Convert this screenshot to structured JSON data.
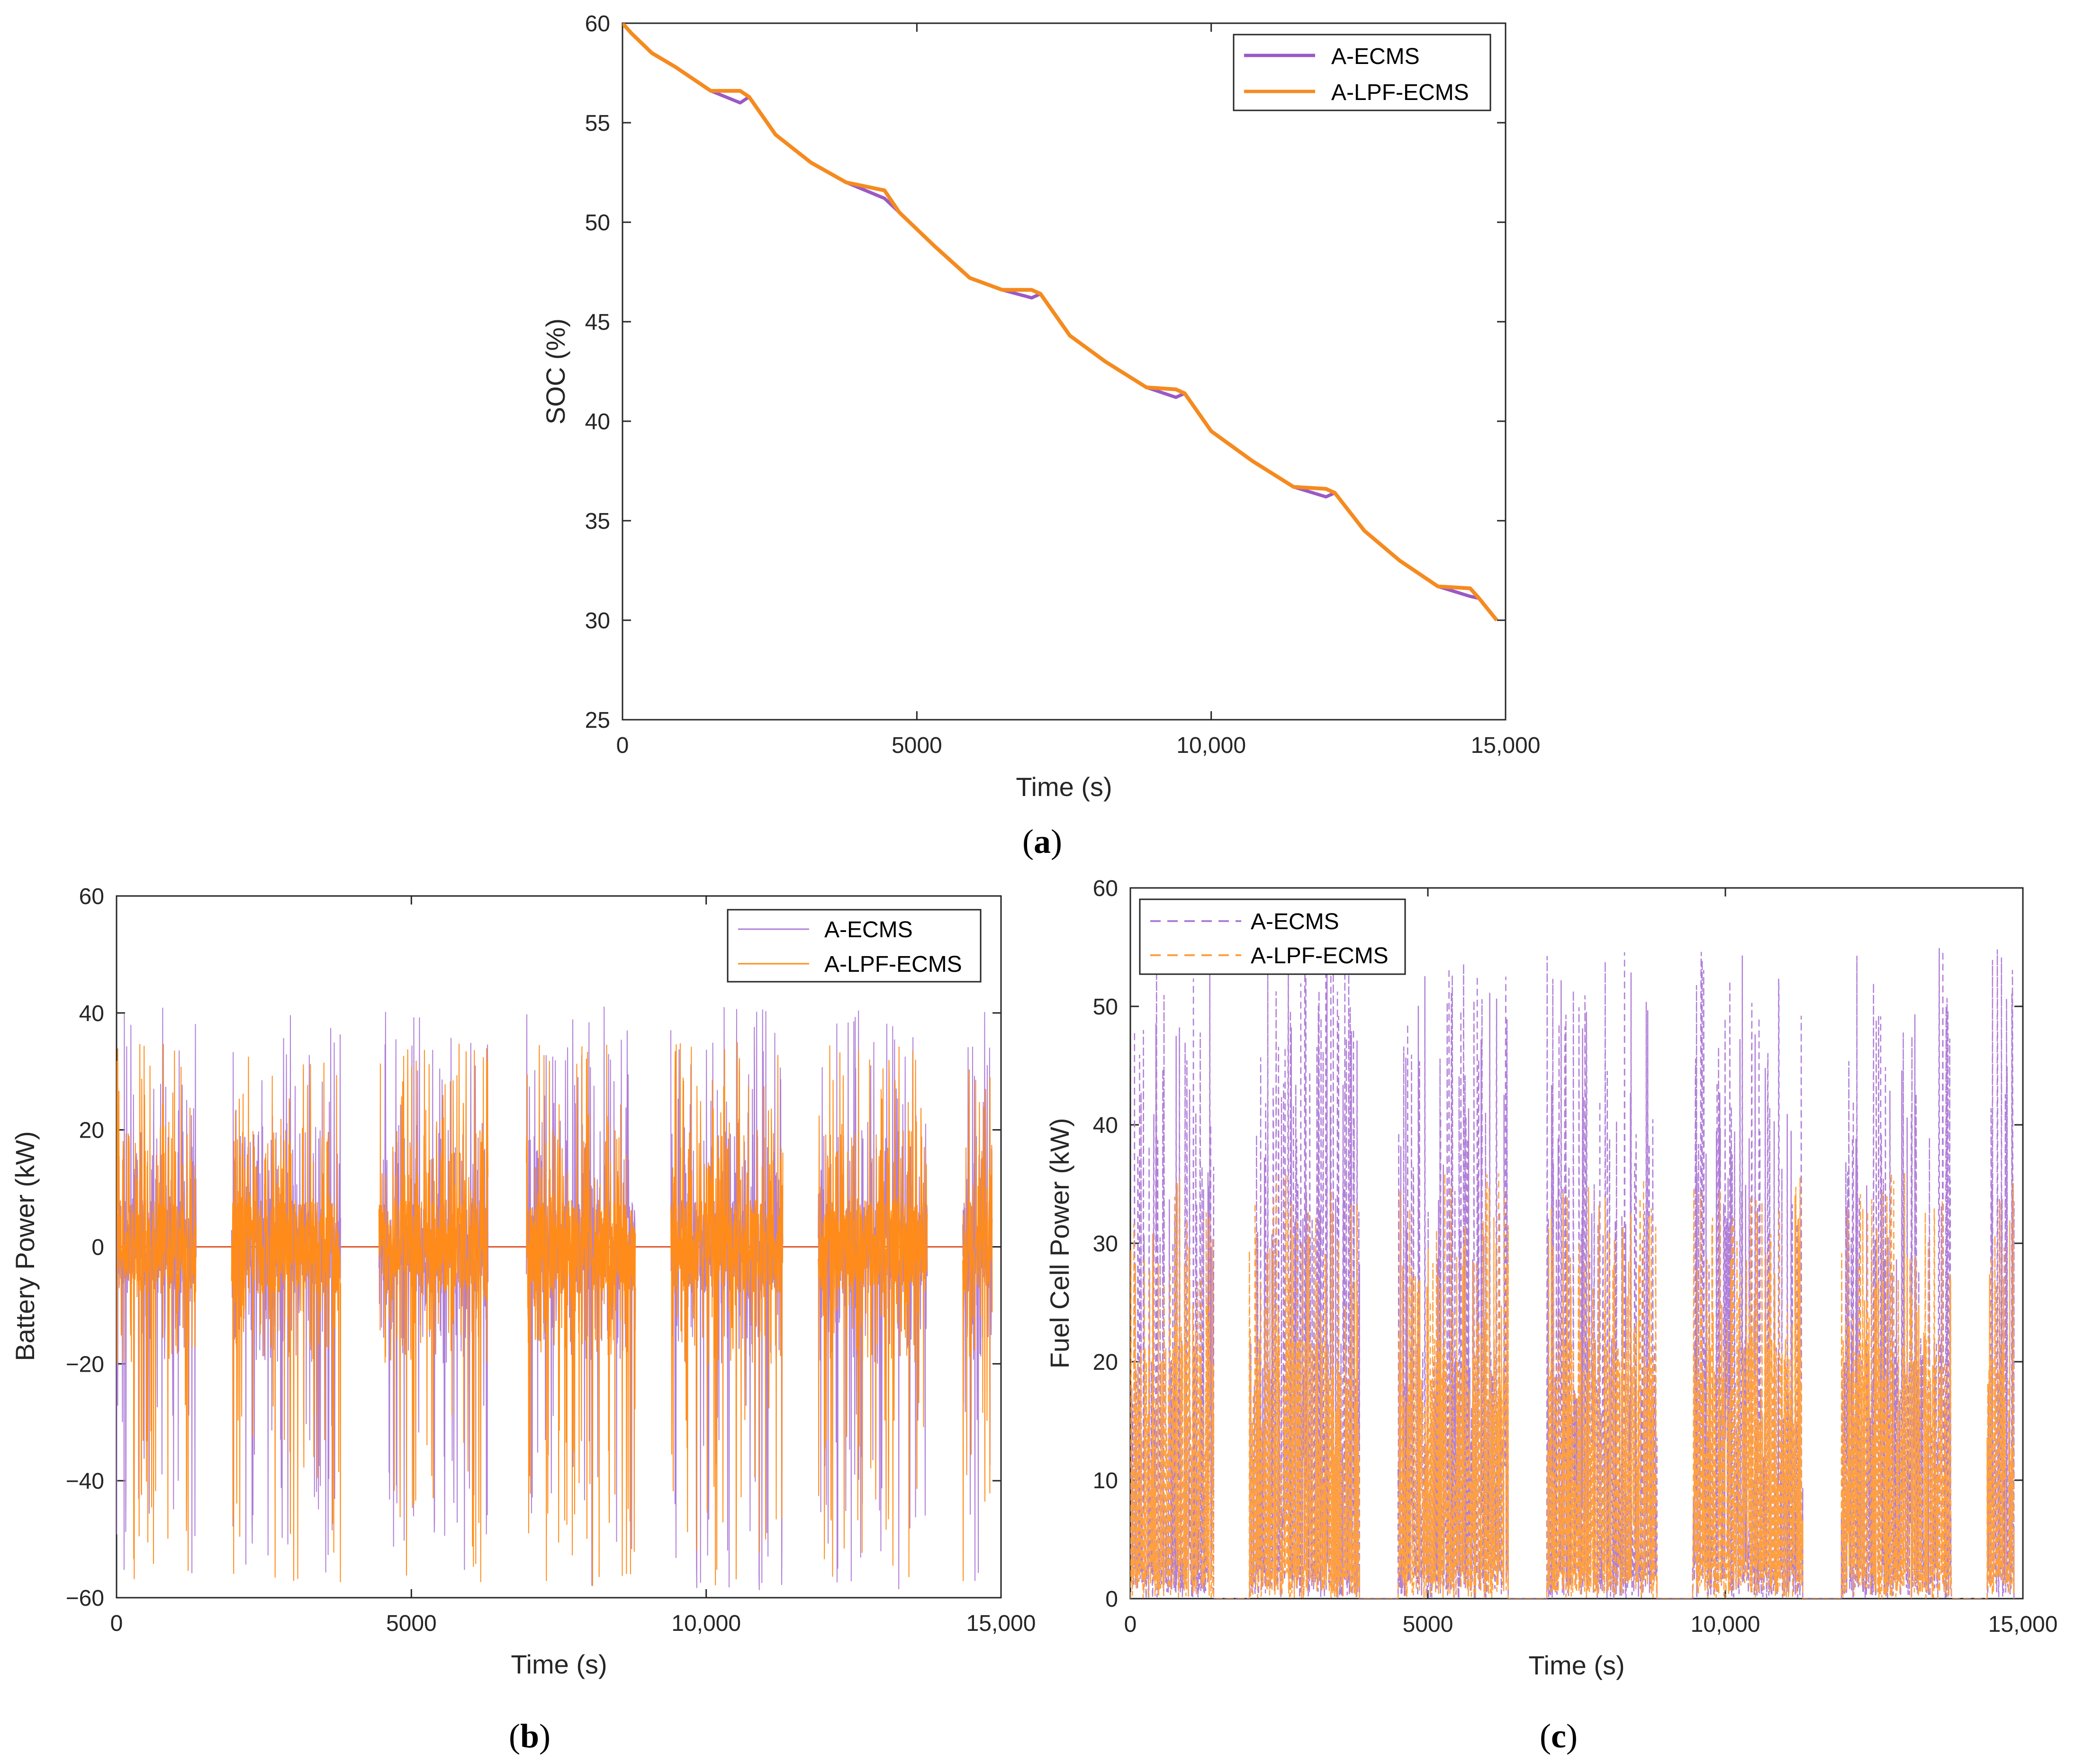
{
  "chart_data": [
    {
      "id": "a",
      "type": "line",
      "caption_letter": "a",
      "xlabel": "Time (s)",
      "ylabel": "SOC (%)",
      "xlim": [
        0,
        15000
      ],
      "ylim": [
        25,
        60
      ],
      "xticks": [
        0,
        5000,
        10000,
        15000
      ],
      "xtick_labels": [
        "0",
        "5000",
        "10,000",
        "15,000"
      ],
      "yticks": [
        25,
        30,
        35,
        40,
        45,
        50,
        55,
        60
      ],
      "ytick_labels": [
        "25",
        "30",
        "35",
        "40",
        "45",
        "50",
        "55",
        "60"
      ],
      "legend_position": "top-right",
      "series": [
        {
          "name": "A-ECMS",
          "color": "#9b59c4",
          "x": [
            0,
            150,
            500,
            900,
            1500,
            2000,
            2150,
            2600,
            3200,
            3800,
            4450,
            4700,
            5300,
            5900,
            6450,
            6950,
            7100,
            7600,
            8200,
            8900,
            9400,
            9550,
            10000,
            10700,
            11400,
            11950,
            12100,
            12600,
            13200,
            13850,
            14400,
            14550,
            14850
          ],
          "values": [
            60,
            59.5,
            58.5,
            57.8,
            56.6,
            56.0,
            56.3,
            54.4,
            53.0,
            52.0,
            51.2,
            50.5,
            48.8,
            47.2,
            46.6,
            46.2,
            46.4,
            44.3,
            43.0,
            41.7,
            41.2,
            41.4,
            39.5,
            38.0,
            36.7,
            36.2,
            36.4,
            34.5,
            33.0,
            31.7,
            31.2,
            31.1,
            30.0
          ]
        },
        {
          "name": "A-LPF-ECMS",
          "color": "#f58a1f",
          "x": [
            0,
            150,
            500,
            900,
            1500,
            2000,
            2150,
            2600,
            3200,
            3800,
            4450,
            4700,
            5300,
            5900,
            6450,
            6950,
            7100,
            7600,
            8200,
            8900,
            9400,
            9550,
            10000,
            10700,
            11400,
            11950,
            12100,
            12600,
            13200,
            13850,
            14400,
            14550,
            14850
          ],
          "values": [
            60,
            59.5,
            58.5,
            57.8,
            56.6,
            56.6,
            56.3,
            54.4,
            53.0,
            52.0,
            51.6,
            50.5,
            48.8,
            47.2,
            46.6,
            46.6,
            46.4,
            44.3,
            43.0,
            41.7,
            41.6,
            41.4,
            39.5,
            38.0,
            36.7,
            36.6,
            36.4,
            34.5,
            33.0,
            31.7,
            31.6,
            31.1,
            30.0
          ]
        }
      ]
    },
    {
      "id": "b",
      "type": "line",
      "caption_letter": "b",
      "xlabel": "Time (s)",
      "ylabel": "Battery Power (kW)",
      "xlim": [
        0,
        15000
      ],
      "ylim": [
        -60,
        60
      ],
      "xticks": [
        0,
        5000,
        10000,
        15000
      ],
      "xtick_labels": [
        "0",
        "5000",
        "10,000",
        "15,000"
      ],
      "yticks": [
        -60,
        -40,
        -20,
        0,
        20,
        40,
        60
      ],
      "ytick_labels": [
        "−60",
        "−40",
        "−20",
        "0",
        "20",
        "40",
        "60"
      ],
      "legend_position": "top-right",
      "active_windows": [
        [
          0,
          1350
        ],
        [
          1950,
          3800
        ],
        [
          4450,
          6300
        ],
        [
          6950,
          8800
        ],
        [
          9400,
          11300
        ],
        [
          11900,
          13750
        ],
        [
          14350,
          14850
        ]
      ],
      "series": [
        {
          "name": "A-ECMS",
          "color": "#b07fd8",
          "line_style": "solid",
          "max_value": 42,
          "min_value": -59
        },
        {
          "name": "A-LPF-ECMS",
          "color": "#ff8c1a",
          "line_style": "solid",
          "max_value": 35,
          "min_value": -58
        }
      ]
    },
    {
      "id": "c",
      "type": "line",
      "caption_letter": "c",
      "xlabel": "Time (s)",
      "ylabel": "Fuel Cell Power (kW)",
      "xlim": [
        0,
        15000
      ],
      "ylim": [
        0,
        60
      ],
      "xticks": [
        0,
        5000,
        10000,
        15000
      ],
      "xtick_labels": [
        "0",
        "5000",
        "10,000",
        "15,000"
      ],
      "yticks": [
        0,
        10,
        20,
        30,
        40,
        50,
        60
      ],
      "ytick_labels": [
        "0",
        "10",
        "20",
        "30",
        "40",
        "50",
        "60"
      ],
      "legend_position": "top-left",
      "active_windows": [
        [
          0,
          1400
        ],
        [
          2000,
          3850
        ],
        [
          4500,
          6350
        ],
        [
          7000,
          8850
        ],
        [
          9450,
          11300
        ],
        [
          11950,
          13800
        ],
        [
          14400,
          14850
        ]
      ],
      "series": [
        {
          "name": "A-ECMS",
          "color": "#b07fd8",
          "line_style": "dashed",
          "max_value": 55,
          "min_value": 0
        },
        {
          "name": "A-LPF-ECMS",
          "color": "#ffa040",
          "line_style": "dashed",
          "max_value": 36,
          "min_value": 0
        }
      ]
    }
  ]
}
